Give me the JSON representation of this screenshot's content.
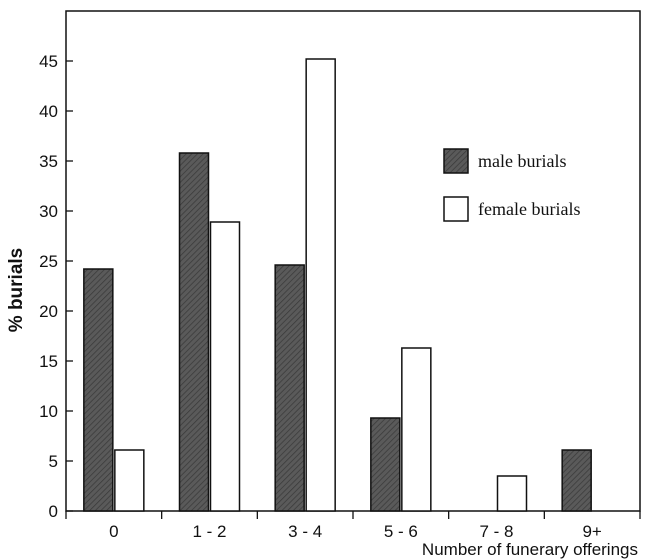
{
  "chart_data": {
    "type": "bar",
    "title": "",
    "xlabel": "Number of funerary offerings",
    "ylabel": "% burials",
    "ylim": [
      0,
      50
    ],
    "yticks": [
      0,
      5,
      10,
      15,
      20,
      25,
      30,
      35,
      40,
      45
    ],
    "categories": [
      "0",
      "1 - 2",
      "3 - 4",
      "5 - 6",
      "7 - 8",
      "9+"
    ],
    "series": [
      {
        "name": "male burials",
        "color": "#555555",
        "values": [
          24.2,
          35.8,
          24.6,
          9.3,
          0,
          6.1
        ]
      },
      {
        "name": "female burials",
        "color": "#ffffff",
        "values": [
          6.1,
          28.9,
          45.2,
          16.3,
          3.5,
          0
        ]
      }
    ],
    "legend": {
      "position": "right"
    },
    "grid": false
  }
}
